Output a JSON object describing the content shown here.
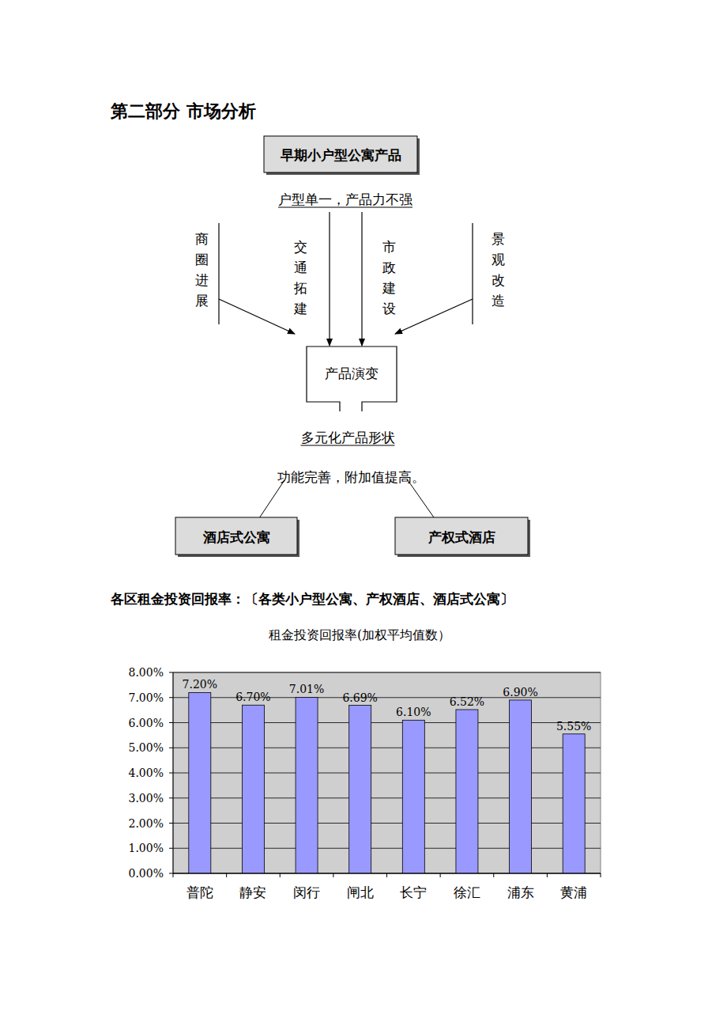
{
  "heading": "第二部分 市场分析",
  "diagram": {
    "top_box": "早期小户型公寓产品",
    "top_note": "户型单一，产品力不强",
    "factors": [
      "商圈进展",
      "交通拓建",
      "市政建设",
      "景观改造"
    ],
    "center_box": "产品演变",
    "middle_note": "多元化产品形状",
    "bottom_note": "功能完善，附加值提高。",
    "outputs": [
      "酒店式公寓",
      "产权式酒店"
    ]
  },
  "chart_heading": "各区租金投资回报率：〔各类小户型公寓、产权酒店、酒店式公寓〕",
  "chart_data": {
    "type": "bar",
    "title": "租金投资回报率(加权平均值数）",
    "categories": [
      "普陀",
      "静安",
      "闵行",
      "闸北",
      "长宁",
      "徐汇",
      "浦东",
      "黄浦"
    ],
    "values": [
      7.2,
      6.7,
      7.01,
      6.69,
      6.1,
      6.52,
      6.9,
      5.55
    ],
    "value_labels": [
      "7.20%",
      "6.70%",
      "7.01%",
      "6.69%",
      "6.10%",
      "6.52%",
      "6.90%",
      "5.55%"
    ],
    "color": "#9999ff",
    "ylim": [
      0,
      8
    ],
    "yticks": [
      {
        "value": 0,
        "label": "0.00%"
      },
      {
        "value": 1,
        "label": "1.00%"
      },
      {
        "value": 2,
        "label": "2.00%"
      },
      {
        "value": 3,
        "label": "3.00%"
      },
      {
        "value": 4,
        "label": "4.00%"
      },
      {
        "value": 5,
        "label": "5.00%"
      },
      {
        "value": 6,
        "label": "6.00%"
      },
      {
        "value": 7,
        "label": "7.00%"
      },
      {
        "value": 8,
        "label": "8.00%"
      }
    ],
    "grid": true,
    "data_labels": true
  }
}
